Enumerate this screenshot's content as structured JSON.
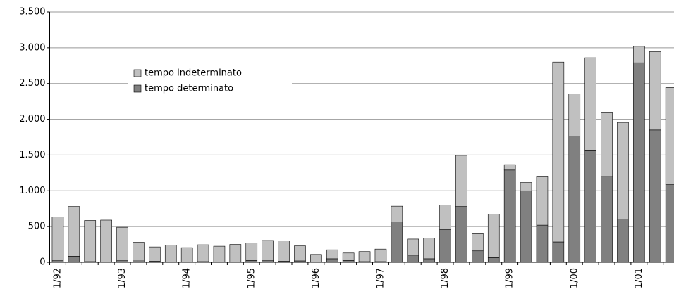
{
  "chart_data": {
    "type": "bar",
    "stacked": true,
    "categories": [
      "1/92",
      null,
      null,
      null,
      "1/93",
      null,
      null,
      null,
      "1/94",
      null,
      null,
      null,
      "1/95",
      null,
      null,
      null,
      "1/96",
      null,
      null,
      null,
      "1/97",
      null,
      null,
      null,
      "1/98",
      null,
      null,
      null,
      "1/99",
      null,
      null,
      null,
      "1/00",
      null,
      null,
      null,
      "1/01",
      null,
      null
    ],
    "series": [
      {
        "name": "tempo indeterminato",
        "color": "#c0c0c0",
        "values": [
          606,
          695,
          575,
          585,
          460,
          245,
          200,
          235,
          200,
          235,
          220,
          245,
          245,
          275,
          285,
          210,
          105,
          125,
          105,
          140,
          175,
          220,
          225,
          290,
          340,
          715,
          240,
          610,
          75,
          115,
          685,
          2515,
          590,
          1290,
          900,
          1350,
          230,
          1095,
          1360
        ]
      },
      {
        "name": "tempo determinato",
        "color": "#808080",
        "values": [
          30,
          85,
          10,
          5,
          30,
          35,
          15,
          5,
          5,
          10,
          5,
          5,
          25,
          30,
          15,
          20,
          5,
          50,
          25,
          10,
          10,
          565,
          100,
          50,
          460,
          780,
          160,
          65,
          1290,
          1000,
          520,
          285,
          1765,
          1570,
          1200,
          605,
          2790,
          1850,
          1085
        ]
      }
    ],
    "ylim": [
      0,
      3500
    ],
    "yticks": [
      0,
      500,
      {
        "value": 1000,
        "label": "1.000"
      },
      {
        "value": 1500,
        "label": "1.500"
      },
      {
        "value": 2000,
        "label": "2.000"
      },
      {
        "value": 2500,
        "label": "2.500"
      },
      {
        "value": 3000,
        "label": "3.000"
      },
      {
        "value": 3500,
        "label": "3.500"
      }
    ],
    "grid": true,
    "legend": "upper left"
  }
}
